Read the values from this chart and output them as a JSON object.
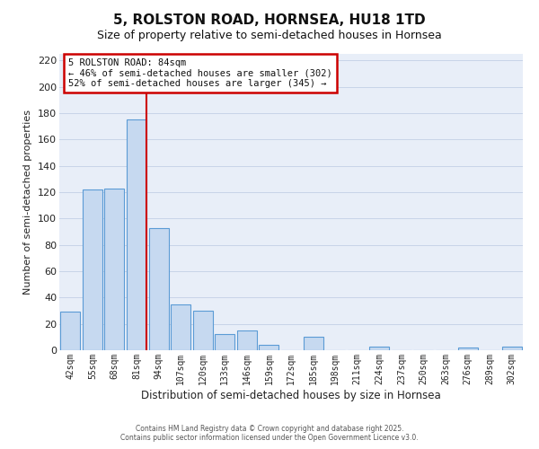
{
  "title": "5, ROLSTON ROAD, HORNSEA, HU18 1TD",
  "subtitle": "Size of property relative to semi-detached houses in Hornsea",
  "xlabel": "Distribution of semi-detached houses by size in Hornsea",
  "ylabel": "Number of semi-detached properties",
  "bar_labels": [
    "42sqm",
    "55sqm",
    "68sqm",
    "81sqm",
    "94sqm",
    "107sqm",
    "120sqm",
    "133sqm",
    "146sqm",
    "159sqm",
    "172sqm",
    "185sqm",
    "198sqm",
    "211sqm",
    "224sqm",
    "237sqm",
    "250sqm",
    "263sqm",
    "276sqm",
    "289sqm",
    "302sqm"
  ],
  "bar_values": [
    29,
    122,
    123,
    175,
    93,
    35,
    30,
    12,
    15,
    4,
    0,
    10,
    0,
    0,
    3,
    0,
    0,
    0,
    2,
    0,
    3
  ],
  "bar_color": "#c6d9f0",
  "bar_edge_color": "#5b9bd5",
  "property_line_x": 3,
  "property_line_color": "#cc0000",
  "annotation_title": "5 ROLSTON ROAD: 84sqm",
  "annotation_line1": "← 46% of semi-detached houses are smaller (302)",
  "annotation_line2": "52% of semi-detached houses are larger (345) →",
  "ylim": [
    0,
    225
  ],
  "yticks": [
    0,
    20,
    40,
    60,
    80,
    100,
    120,
    140,
    160,
    180,
    200,
    220
  ],
  "footer1": "Contains HM Land Registry data © Crown copyright and database right 2025.",
  "footer2": "Contains public sector information licensed under the Open Government Licence v3.0.",
  "background_color": "#e8eef8",
  "fig_bg_color": "#ffffff",
  "grid_color": "#c8d4e8",
  "title_fontsize": 11,
  "subtitle_fontsize": 9
}
